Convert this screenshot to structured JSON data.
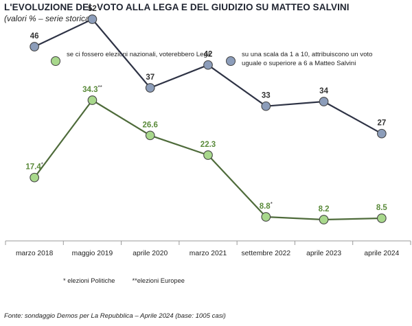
{
  "title": "L'EVOLUZIONE DEL VOTO ALLA LEGA E DEL GIUDIZIO SU MATTEO SALVINI",
  "subtitle": "(valori % – serie storica)",
  "legend": {
    "green": "se ci fossero elezioni nazionali, voterebbero Lega",
    "blue": "su una scala da 1 a 10, attribuiscono un voto uguale o superiore a 6 a Matteo Salvini"
  },
  "notes": {
    "politiche": "* elezioni Politiche",
    "europee": "**elezioni Europee"
  },
  "source": "Fonte: sondaggio Demos per La Repubblica – Aprile 2024 (base: 1005 casi)",
  "colors": {
    "blue_fill": "#8c9dba",
    "blue_line": "#2e3345",
    "green_fill": "#a8d88c",
    "green_line": "#4e6b3a",
    "marker_stroke": "#444444",
    "axis": "#999999"
  },
  "chart_data": {
    "type": "line",
    "categories": [
      "marzo 2018",
      "maggio 2019",
      "aprile 2020",
      "marzo 2021",
      "settembre 2022",
      "aprile 2023",
      "aprile 2024"
    ],
    "series": [
      {
        "key": "blue",
        "name": "su una scala da 1 a 10, attribuiscono un voto uguale o superiore a 6 a Matteo Salvini",
        "values": [
          46,
          52,
          37,
          42,
          33,
          34,
          27
        ],
        "labels": [
          "46",
          "52",
          "37",
          "42",
          "33",
          "34",
          "27"
        ]
      },
      {
        "key": "green",
        "name": "se ci fossero elezioni nazionali, voterebbero Lega",
        "values": [
          17.4,
          34.3,
          26.6,
          22.3,
          8.8,
          8.2,
          8.5
        ],
        "labels": [
          "17.4",
          "34.3",
          "26.6",
          "22.3",
          "8.8",
          "8.2",
          "8.5"
        ],
        "label_marks": [
          "*",
          "**",
          "",
          "",
          "*",
          "",
          ""
        ]
      }
    ],
    "ylim": [
      0,
      60
    ],
    "grid": false,
    "legend_position": "top"
  }
}
